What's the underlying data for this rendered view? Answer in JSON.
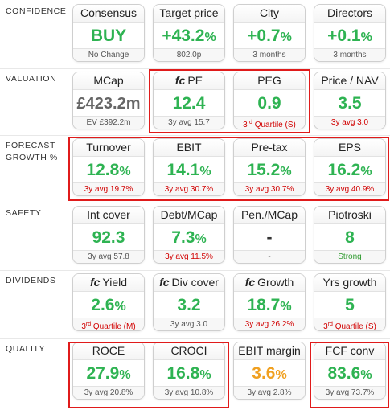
{
  "rows": [
    {
      "label": "CONFIDENCE",
      "tiles": [
        {
          "prefix": "",
          "title": "Consensus",
          "value": "BUY",
          "unit": "",
          "footer": "No Change",
          "footer_sup": "",
          "footer_rest": "",
          "value_color": "green",
          "footer_color": "grey"
        },
        {
          "prefix": "",
          "title": "Target price",
          "value": "+43.2",
          "unit": "%",
          "footer": "802.0p",
          "footer_sup": "",
          "footer_rest": "",
          "value_color": "green",
          "footer_color": "grey"
        },
        {
          "prefix": "",
          "title": "City",
          "value": "+0.7",
          "unit": "%",
          "footer": "3 months",
          "footer_sup": "",
          "footer_rest": "",
          "value_color": "green",
          "footer_color": "grey"
        },
        {
          "prefix": "",
          "title": "Directors",
          "value": "+0.1",
          "unit": "%",
          "footer": "3 months",
          "footer_sup": "",
          "footer_rest": "",
          "value_color": "green",
          "footer_color": "grey"
        }
      ]
    },
    {
      "label": "VALUATION",
      "tiles": [
        {
          "prefix": "",
          "title": "MCap",
          "value": "£423.2m",
          "unit": "",
          "footer": "EV £392.2m",
          "footer_sup": "",
          "footer_rest": "",
          "value_color": "grey",
          "footer_color": "grey"
        },
        {
          "prefix": "fc",
          "title": "PE",
          "value": "12.4",
          "unit": "",
          "footer": "3y avg 15.7",
          "footer_sup": "",
          "footer_rest": "",
          "value_color": "green",
          "footer_color": "grey"
        },
        {
          "prefix": "",
          "title": "PEG",
          "value": "0.9",
          "unit": "",
          "footer": "3",
          "footer_sup": "rd",
          "footer_rest": " Quartile (S)",
          "value_color": "green",
          "footer_color": "red"
        },
        {
          "prefix": "",
          "title": "Price / NAV",
          "value": "3.5",
          "unit": "",
          "footer": "3y avg 3.0",
          "footer_sup": "",
          "footer_rest": "",
          "value_color": "green",
          "footer_color": "red"
        }
      ]
    },
    {
      "label": "FORECAST\nGROWTH %",
      "tiles": [
        {
          "prefix": "",
          "title": "Turnover",
          "value": "12.8",
          "unit": "%",
          "footer": "3y avg 19.7%",
          "footer_sup": "",
          "footer_rest": "",
          "value_color": "green",
          "footer_color": "red"
        },
        {
          "prefix": "",
          "title": "EBIT",
          "value": "14.1",
          "unit": "%",
          "footer": "3y avg 30.7%",
          "footer_sup": "",
          "footer_rest": "",
          "value_color": "green",
          "footer_color": "red"
        },
        {
          "prefix": "",
          "title": "Pre-tax",
          "value": "15.2",
          "unit": "%",
          "footer": "3y avg 30.7%",
          "footer_sup": "",
          "footer_rest": "",
          "value_color": "green",
          "footer_color": "red"
        },
        {
          "prefix": "",
          "title": "EPS",
          "value": "16.2",
          "unit": "%",
          "footer": "3y avg 40.9%",
          "footer_sup": "",
          "footer_rest": "",
          "value_color": "green",
          "footer_color": "red"
        }
      ]
    },
    {
      "label": "SAFETY",
      "tiles": [
        {
          "prefix": "",
          "title": "Int cover",
          "value": "92.3",
          "unit": "",
          "footer": "3y avg 57.8",
          "footer_sup": "",
          "footer_rest": "",
          "value_color": "green",
          "footer_color": "grey"
        },
        {
          "prefix": "",
          "title": "Debt/MCap",
          "value": "7.3",
          "unit": "%",
          "footer": "3y avg 11.5%",
          "footer_sup": "",
          "footer_rest": "",
          "value_color": "green",
          "footer_color": "red"
        },
        {
          "prefix": "",
          "title": "Pen./MCap",
          "value": "-",
          "unit": "",
          "footer": "-",
          "footer_sup": "",
          "footer_rest": "",
          "value_color": "dark",
          "footer_color": "grey"
        },
        {
          "prefix": "",
          "title": "Piotroski",
          "value": "8",
          "unit": "",
          "footer": "Strong",
          "footer_sup": "",
          "footer_rest": "",
          "value_color": "green",
          "footer_color": "green"
        }
      ]
    },
    {
      "label": "DIVIDENDS",
      "tiles": [
        {
          "prefix": "fc",
          "title": "Yield",
          "value": "2.6",
          "unit": "%",
          "footer": "3",
          "footer_sup": "rd",
          "footer_rest": " Quartile (M)",
          "value_color": "green",
          "footer_color": "red"
        },
        {
          "prefix": "fc",
          "title": "Div cover",
          "value": "3.2",
          "unit": "",
          "footer": "3y avg 3.0",
          "footer_sup": "",
          "footer_rest": "",
          "value_color": "green",
          "footer_color": "grey"
        },
        {
          "prefix": "fc",
          "title": "Growth",
          "value": "18.7",
          "unit": "%",
          "footer": "3y avg 26.2%",
          "footer_sup": "",
          "footer_rest": "",
          "value_color": "green",
          "footer_color": "red"
        },
        {
          "prefix": "",
          "title": "Yrs growth",
          "value": "5",
          "unit": "",
          "footer": "3",
          "footer_sup": "rd",
          "footer_rest": " Quartile (S)",
          "value_color": "green",
          "footer_color": "red"
        }
      ]
    },
    {
      "label": "QUALITY",
      "tiles": [
        {
          "prefix": "",
          "title": "ROCE",
          "value": "27.9",
          "unit": "%",
          "footer": "3y avg 20.8%",
          "footer_sup": "",
          "footer_rest": "",
          "value_color": "green",
          "footer_color": "grey"
        },
        {
          "prefix": "",
          "title": "CROCI",
          "value": "16.8",
          "unit": "%",
          "footer": "3y avg 10.8%",
          "footer_sup": "",
          "footer_rest": "",
          "value_color": "green",
          "footer_color": "grey"
        },
        {
          "prefix": "",
          "title": "EBIT margin",
          "value": "3.6",
          "unit": "%",
          "footer": "3y avg 2.8%",
          "footer_sup": "",
          "footer_rest": "",
          "value_color": "amber",
          "footer_color": "grey"
        },
        {
          "prefix": "",
          "title": "FCF conv",
          "value": "83.6",
          "unit": "%",
          "footer": "3y avg 73.7%",
          "footer_sup": "",
          "footer_rest": "",
          "value_color": "green",
          "footer_color": "grey"
        }
      ]
    }
  ],
  "colors": {
    "green": "#2eb352",
    "red": "#d10000",
    "amber": "#f0a020",
    "highlight_border": "#e01b1b"
  }
}
